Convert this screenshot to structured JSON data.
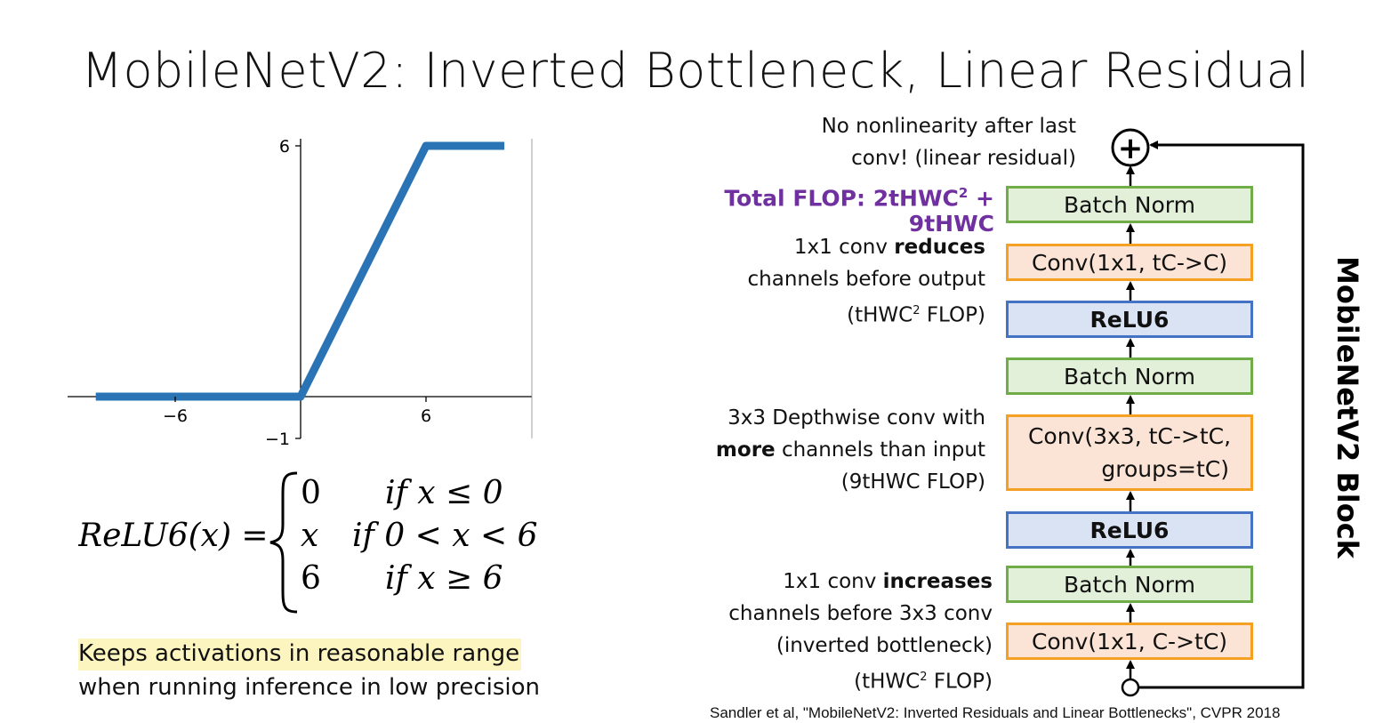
{
  "title": "MobileNetV2: Inverted Bottleneck, Linear Residual",
  "chart_data": {
    "type": "line",
    "title": "",
    "xlabel": "",
    "ylabel": "",
    "x": [
      -10,
      0,
      6,
      10
    ],
    "y": [
      0,
      0,
      6,
      6
    ],
    "xlim": [
      -10,
      10
    ],
    "ylim": [
      -1,
      6
    ],
    "xticks": [
      "−6",
      "6"
    ],
    "yticks": [
      "6",
      "−1"
    ],
    "line_color": "#2a74b5"
  },
  "formula": {
    "lhs": "ReLU6(x) =",
    "cases": [
      {
        "value": "0",
        "condition": "if x ≤ 0"
      },
      {
        "value": "x",
        "condition": "if 0 < x < 6"
      },
      {
        "value": "6",
        "condition": "if x ≥ 6"
      }
    ]
  },
  "note": {
    "line1": "Keeps activations in reasonable range",
    "line2": "when running inference in low precision"
  },
  "annotations": {
    "no_nonlinearity": {
      "line1": "No nonlinearity after last",
      "line2": "conv! (linear residual)"
    },
    "total_flop": {
      "text": "Total FLOP: 2tHWC",
      "sup": "2",
      "rest": " + 9tHWC"
    },
    "reduce": {
      "pre": "1x1 conv ",
      "bold": "reduces",
      "line2": "channels before output",
      "line3a": "(tHWC",
      "sup": "2",
      "line3b": " FLOP)"
    },
    "depthwise": {
      "line1": "3x3 Depthwise conv with",
      "bold": "more",
      "line2rest": " channels than input",
      "line3": "(9tHWC FLOP)"
    },
    "increase": {
      "pre": "1x1 conv ",
      "bold": "increases",
      "line2": "channels before 3x3 conv",
      "line3": "(inverted bottleneck)",
      "line4a": "(tHWC",
      "sup": "2",
      "line4b": " FLOP)"
    }
  },
  "blocks": [
    {
      "label": "Batch Norm",
      "kind": "bn"
    },
    {
      "label": "Conv(1x1, tC->C)",
      "kind": "conv"
    },
    {
      "label": "ReLU6",
      "kind": "relu"
    },
    {
      "label": "Batch Norm",
      "kind": "bn"
    },
    {
      "label": "Conv(3x3, tC->tC,",
      "label2": "groups=tC)",
      "kind": "conv"
    },
    {
      "label": "ReLU6",
      "kind": "relu"
    },
    {
      "label": "Batch Norm",
      "kind": "bn"
    },
    {
      "label": "Conv(1x1, C->tC)",
      "kind": "conv"
    }
  ],
  "plus_symbol": "+",
  "block_label": "MobileNetV2 Block",
  "citation": "Sandler et al, \"MobileNetV2: Inverted Residuals and Linear Bottlenecks\", CVPR 2018",
  "colors": {
    "bn_fill": "#e2efd9",
    "bn_border": "#70ad47",
    "conv_fill": "#fbe4d5",
    "conv_border": "#f4a024",
    "relu_fill": "#dae3f3",
    "relu_border": "#4472c4",
    "flop_purple": "#7030a0",
    "highlight": "#fdf5bf"
  }
}
